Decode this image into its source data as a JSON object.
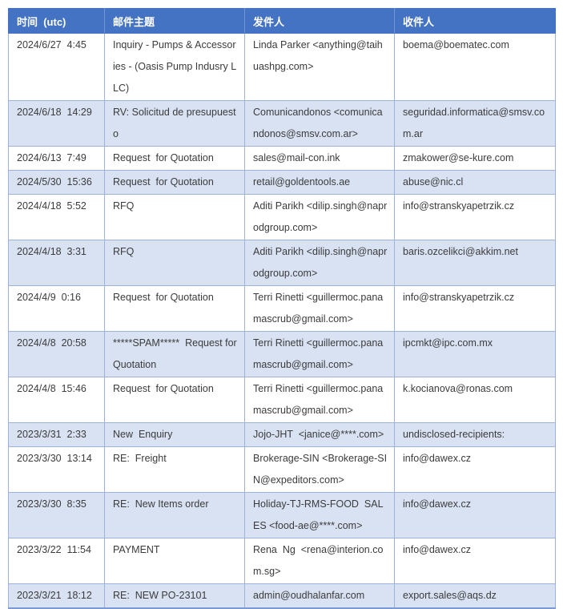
{
  "colors": {
    "header_bg": "#4573C4",
    "header_text": "#FFFFFF",
    "row_bg": "#FFFFFF",
    "row_alt_bg": "#D9E2F3",
    "border": "#9DB3DC",
    "bottom_border": "#7B99D2",
    "body_text": "#3B3B3B"
  },
  "table": {
    "headers": [
      "时间  (utc)",
      "邮件主题",
      "发件人",
      "收件人"
    ],
    "rows": [
      {
        "time": "2024/6/27  4:45",
        "subject": "Inquiry - Pumps & Accessories - (Oasis Pump Indusry LLC)",
        "sender": "Linda Parker <anything@taihuashpg.com>",
        "recipient": "boema@boematec.com"
      },
      {
        "time": "2024/6/18  14:29",
        "subject": "RV: Solicitud de presupuesto",
        "sender": "Comunicandonos <comunicandonos@smsv.com.ar>",
        "recipient": "seguridad.informatica@smsv.com.ar"
      },
      {
        "time": "2024/6/13  7:49",
        "subject": "Request  for Quotation",
        "sender": "sales@mail-con.ink",
        "recipient": "zmakower@se-kure.com"
      },
      {
        "time": "2024/5/30  15:36",
        "subject": "Request  for Quotation",
        "sender": "retail@goldentools.ae",
        "recipient": "abuse@nic.cl"
      },
      {
        "time": "2024/4/18  5:52",
        "subject": "RFQ",
        "sender": "Aditi Parikh <dilip.singh@naprodgroup.com>",
        "recipient": "info@stranskyapetrzik.cz"
      },
      {
        "time": "2024/4/18  3:31",
        "subject": "RFQ",
        "sender": "Aditi Parikh <dilip.singh@naprodgroup.com>",
        "recipient": "baris.ozcelikci@akkim.net"
      },
      {
        "time": "2024/4/9  0:16",
        "subject": "Request  for Quotation",
        "sender": "Terri Rinetti <guillermoc.panamascrub@gmail.com>",
        "recipient": "info@stranskyapetrzik.cz"
      },
      {
        "time": "2024/4/8  20:58",
        "subject": "*****SPAM*****  Request for Quotation",
        "sender": "Terri Rinetti <guillermoc.panamascrub@gmail.com>",
        "recipient": "ipcmkt@ipc.com.mx"
      },
      {
        "time": "2024/4/8  15:46",
        "subject": "Request  for Quotation",
        "sender": "Terri Rinetti <guillermoc.panamascrub@gmail.com>",
        "recipient": "k.kocianova@ronas.com"
      },
      {
        "time": "2023/3/31  2:33",
        "subject": "New  Enquiry",
        "sender": "Jojo-JHT  <janice@****.com>",
        "recipient": "undisclosed-recipients:"
      },
      {
        "time": "2023/3/30  13:14",
        "subject": "RE:  Freight",
        "sender": "Brokerage-SIN <Brokerage-SIN@expeditors.com>",
        "recipient": "info@dawex.cz"
      },
      {
        "time": "2023/3/30  8:35",
        "subject": "RE:  New Items order",
        "sender": "Holiday-TJ-RMS-FOOD  SALES <food-ae@****.com>",
        "recipient": "info@dawex.cz"
      },
      {
        "time": "2023/3/22  11:54",
        "subject": "PAYMENT",
        "sender": "Rena  Ng  <rena@interion.com.sg>",
        "recipient": "info@dawex.cz"
      },
      {
        "time": "2023/3/21  18:12",
        "subject": "RE:  NEW PO-23101",
        "sender": "admin@oudhalanfar.com",
        "recipient": "export.sales@aqs.dz"
      }
    ]
  }
}
